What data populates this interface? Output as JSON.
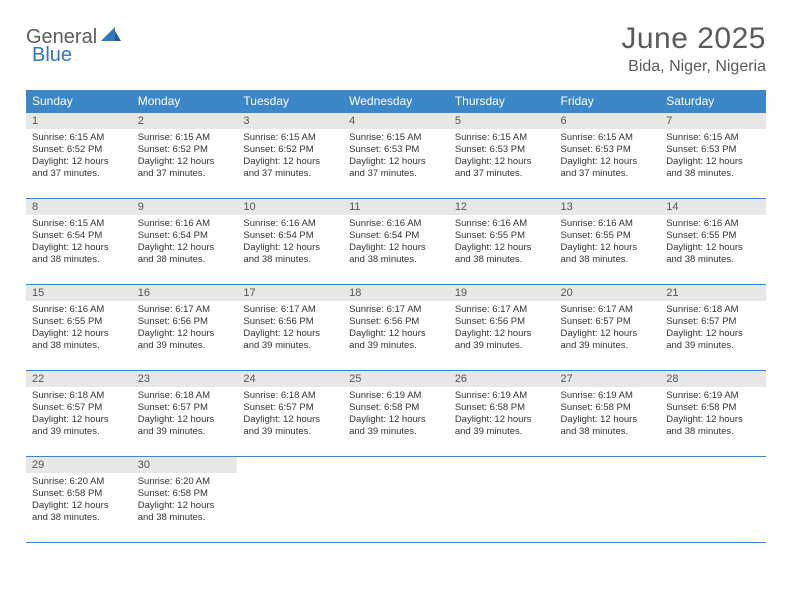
{
  "brand": {
    "part1": "General",
    "part2": "Blue"
  },
  "title": "June 2025",
  "location": "Bida, Niger, Nigeria",
  "colors": {
    "header_bg": "#3b87c8",
    "header_text": "#ffffff",
    "daynum_bg": "#e7e7e7",
    "rule": "#3b87c8",
    "brand_gray": "#5c5c5c",
    "brand_blue": "#2f76bb",
    "title_color": "#5a5a5a"
  },
  "day_headers": [
    "Sunday",
    "Monday",
    "Tuesday",
    "Wednesday",
    "Thursday",
    "Friday",
    "Saturday"
  ],
  "weeks": [
    [
      {
        "n": "1",
        "sr": "6:15 AM",
        "ss": "6:52 PM",
        "dl": "12 hours and 37 minutes."
      },
      {
        "n": "2",
        "sr": "6:15 AM",
        "ss": "6:52 PM",
        "dl": "12 hours and 37 minutes."
      },
      {
        "n": "3",
        "sr": "6:15 AM",
        "ss": "6:52 PM",
        "dl": "12 hours and 37 minutes."
      },
      {
        "n": "4",
        "sr": "6:15 AM",
        "ss": "6:53 PM",
        "dl": "12 hours and 37 minutes."
      },
      {
        "n": "5",
        "sr": "6:15 AM",
        "ss": "6:53 PM",
        "dl": "12 hours and 37 minutes."
      },
      {
        "n": "6",
        "sr": "6:15 AM",
        "ss": "6:53 PM",
        "dl": "12 hours and 37 minutes."
      },
      {
        "n": "7",
        "sr": "6:15 AM",
        "ss": "6:53 PM",
        "dl": "12 hours and 38 minutes."
      }
    ],
    [
      {
        "n": "8",
        "sr": "6:15 AM",
        "ss": "6:54 PM",
        "dl": "12 hours and 38 minutes."
      },
      {
        "n": "9",
        "sr": "6:16 AM",
        "ss": "6:54 PM",
        "dl": "12 hours and 38 minutes."
      },
      {
        "n": "10",
        "sr": "6:16 AM",
        "ss": "6:54 PM",
        "dl": "12 hours and 38 minutes."
      },
      {
        "n": "11",
        "sr": "6:16 AM",
        "ss": "6:54 PM",
        "dl": "12 hours and 38 minutes."
      },
      {
        "n": "12",
        "sr": "6:16 AM",
        "ss": "6:55 PM",
        "dl": "12 hours and 38 minutes."
      },
      {
        "n": "13",
        "sr": "6:16 AM",
        "ss": "6:55 PM",
        "dl": "12 hours and 38 minutes."
      },
      {
        "n": "14",
        "sr": "6:16 AM",
        "ss": "6:55 PM",
        "dl": "12 hours and 38 minutes."
      }
    ],
    [
      {
        "n": "15",
        "sr": "6:16 AM",
        "ss": "6:55 PM",
        "dl": "12 hours and 38 minutes."
      },
      {
        "n": "16",
        "sr": "6:17 AM",
        "ss": "6:56 PM",
        "dl": "12 hours and 39 minutes."
      },
      {
        "n": "17",
        "sr": "6:17 AM",
        "ss": "6:56 PM",
        "dl": "12 hours and 39 minutes."
      },
      {
        "n": "18",
        "sr": "6:17 AM",
        "ss": "6:56 PM",
        "dl": "12 hours and 39 minutes."
      },
      {
        "n": "19",
        "sr": "6:17 AM",
        "ss": "6:56 PM",
        "dl": "12 hours and 39 minutes."
      },
      {
        "n": "20",
        "sr": "6:17 AM",
        "ss": "6:57 PM",
        "dl": "12 hours and 39 minutes."
      },
      {
        "n": "21",
        "sr": "6:18 AM",
        "ss": "6:57 PM",
        "dl": "12 hours and 39 minutes."
      }
    ],
    [
      {
        "n": "22",
        "sr": "6:18 AM",
        "ss": "6:57 PM",
        "dl": "12 hours and 39 minutes."
      },
      {
        "n": "23",
        "sr": "6:18 AM",
        "ss": "6:57 PM",
        "dl": "12 hours and 39 minutes."
      },
      {
        "n": "24",
        "sr": "6:18 AM",
        "ss": "6:57 PM",
        "dl": "12 hours and 39 minutes."
      },
      {
        "n": "25",
        "sr": "6:19 AM",
        "ss": "6:58 PM",
        "dl": "12 hours and 39 minutes."
      },
      {
        "n": "26",
        "sr": "6:19 AM",
        "ss": "6:58 PM",
        "dl": "12 hours and 39 minutes."
      },
      {
        "n": "27",
        "sr": "6:19 AM",
        "ss": "6:58 PM",
        "dl": "12 hours and 38 minutes."
      },
      {
        "n": "28",
        "sr": "6:19 AM",
        "ss": "6:58 PM",
        "dl": "12 hours and 38 minutes."
      }
    ],
    [
      {
        "n": "29",
        "sr": "6:20 AM",
        "ss": "6:58 PM",
        "dl": "12 hours and 38 minutes."
      },
      {
        "n": "30",
        "sr": "6:20 AM",
        "ss": "6:58 PM",
        "dl": "12 hours and 38 minutes."
      },
      null,
      null,
      null,
      null,
      null
    ]
  ],
  "labels": {
    "sunrise": "Sunrise: ",
    "sunset": "Sunset: ",
    "daylight": "Daylight: "
  }
}
